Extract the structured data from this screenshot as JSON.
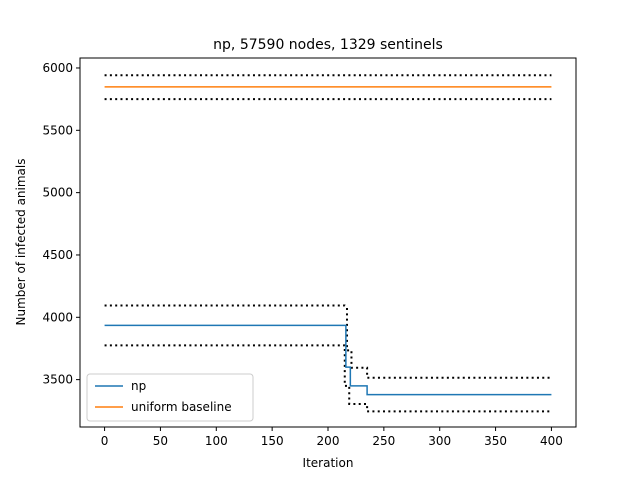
{
  "chart_data": {
    "type": "line",
    "title": "np, 57590 nodes, 1329 sentinels",
    "xlabel": "Iteration",
    "ylabel": "Number of infected animals",
    "xlim": [
      -22,
      422
    ],
    "ylim": [
      3120,
      6080
    ],
    "xticks": [
      0,
      50,
      100,
      150,
      200,
      250,
      300,
      350,
      400
    ],
    "yticks": [
      3500,
      4000,
      4500,
      5000,
      5500,
      6000
    ],
    "grid": false,
    "legend": {
      "position": "lower-left",
      "entries": [
        "np",
        "uniform baseline"
      ]
    },
    "series": [
      {
        "name": "np",
        "color": "#1f77b4",
        "style": "solid",
        "x": [
          0,
          216,
          216,
          220,
          220,
          224,
          224,
          235,
          235,
          400
        ],
        "y": [
          3935,
          3935,
          3600,
          3600,
          3450,
          3450,
          3450,
          3450,
          3380,
          3380
        ]
      },
      {
        "name": "uniform baseline",
        "color": "#ff7f0e",
        "style": "solid",
        "x": [
          0,
          400
        ],
        "y": [
          5848,
          5848
        ]
      }
    ],
    "bounds": [
      {
        "color": "#000000",
        "style": "dotted",
        "x": [
          0,
          215,
          217,
          217,
          221,
          221,
          224,
          224,
          235,
          235,
          400
        ],
        "y": [
          4095,
          4095,
          4080,
          3735,
          3735,
          3595,
          3595,
          3595,
          3595,
          3515,
          3515
        ]
      },
      {
        "color": "#000000",
        "style": "dotted",
        "x": [
          0,
          215,
          215,
          219,
          219,
          223,
          223,
          235,
          235,
          400
        ],
        "y": [
          3775,
          3775,
          3450,
          3450,
          3305,
          3305,
          3305,
          3305,
          3245,
          3245
        ]
      },
      {
        "color": "#000000",
        "style": "dotted",
        "x": [
          0,
          400
        ],
        "y": [
          5942,
          5942
        ]
      },
      {
        "color": "#000000",
        "style": "dotted",
        "x": [
          0,
          400
        ],
        "y": [
          5750,
          5750
        ]
      }
    ]
  }
}
